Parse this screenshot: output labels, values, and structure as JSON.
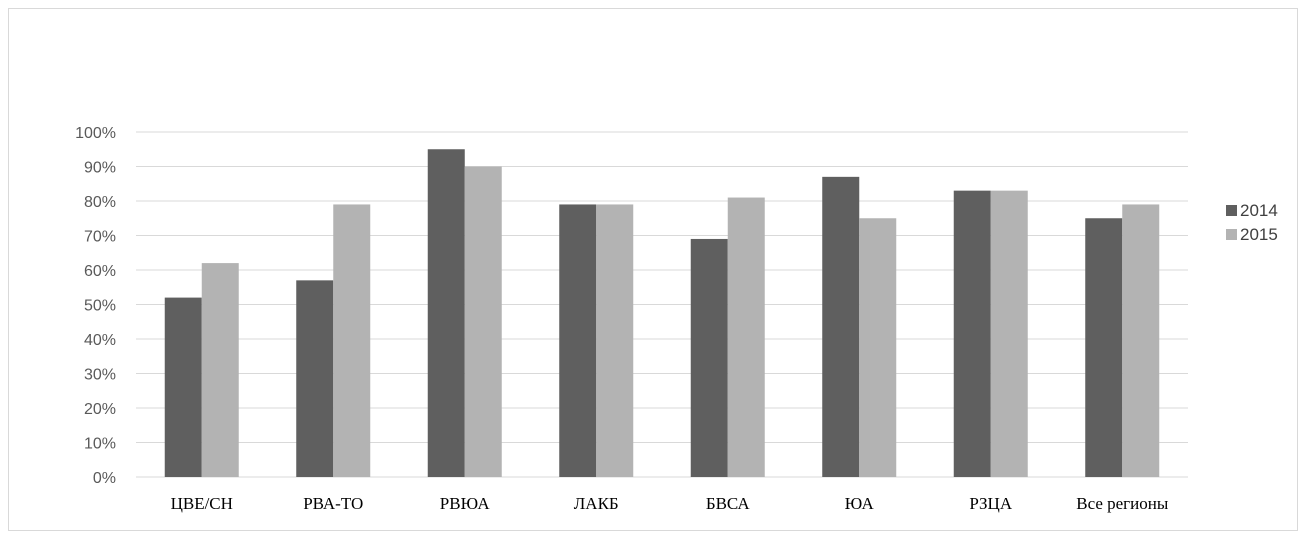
{
  "chart_data": {
    "type": "bar",
    "title": "",
    "xlabel": "",
    "ylabel": "",
    "categories": [
      "ЦВЕ/СН",
      "РВА-ТО",
      "РВЮА",
      "ЛАКБ",
      "БВСА",
      "ЮА",
      "РЗЦА",
      "Все регионы"
    ],
    "series": [
      {
        "name": "2014",
        "color": "#5f5f5f",
        "values": [
          52,
          57,
          95,
          79,
          69,
          87,
          83,
          75
        ]
      },
      {
        "name": "2015",
        "color": "#b3b3b3",
        "values": [
          62,
          79,
          90,
          79,
          81,
          75,
          83,
          79
        ]
      }
    ],
    "ylim": [
      0,
      100
    ],
    "ytick_step": 10,
    "ytick_labels": [
      "0%",
      "10%",
      "20%",
      "30%",
      "40%",
      "50%",
      "60%",
      "70%",
      "80%",
      "90%",
      "100%"
    ],
    "grid": true,
    "gridline_color": "#d9d9d9",
    "legend_position": "right"
  }
}
